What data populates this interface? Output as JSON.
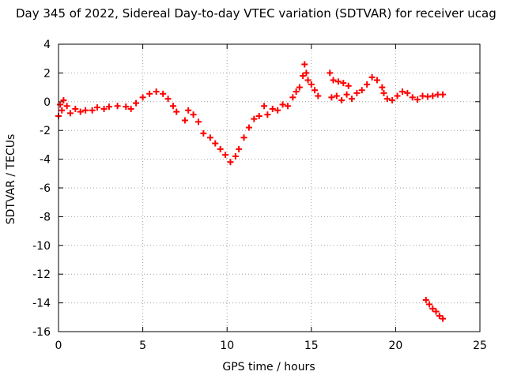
{
  "chart_data": {
    "type": "scatter",
    "title": "Day 345 of 2022, Sidereal Day-to-day VTEC variation (SDTVAR) for receiver ucag",
    "xlabel": "GPS time / hours",
    "ylabel": "SDTVAR / TECUs",
    "xlim": [
      0,
      25
    ],
    "ylim": [
      -16,
      4
    ],
    "xticks": [
      0,
      5,
      10,
      15,
      20,
      25
    ],
    "yticks": [
      4,
      2,
      0,
      -2,
      -4,
      -6,
      -8,
      -10,
      -12,
      -14,
      -16
    ],
    "grid": true,
    "marker_color": "#ff0000",
    "series": [
      {
        "name": "SDTVAR",
        "points": [
          [
            0.0,
            -1.0
          ],
          [
            0.1,
            -0.2
          ],
          [
            0.2,
            -0.6
          ],
          [
            0.3,
            0.1
          ],
          [
            0.5,
            -0.3
          ],
          [
            0.7,
            -0.8
          ],
          [
            1.0,
            -0.5
          ],
          [
            1.3,
            -0.7
          ],
          [
            1.6,
            -0.6
          ],
          [
            2.0,
            -0.6
          ],
          [
            2.3,
            -0.4
          ],
          [
            2.7,
            -0.5
          ],
          [
            3.0,
            -0.35
          ],
          [
            3.5,
            -0.3
          ],
          [
            4.0,
            -0.35
          ],
          [
            4.3,
            -0.5
          ],
          [
            4.6,
            -0.1
          ],
          [
            5.0,
            0.3
          ],
          [
            5.4,
            0.55
          ],
          [
            5.8,
            0.7
          ],
          [
            6.2,
            0.55
          ],
          [
            6.5,
            0.2
          ],
          [
            6.8,
            -0.3
          ],
          [
            7.0,
            -0.7
          ],
          [
            7.5,
            -1.3
          ],
          [
            7.7,
            -0.6
          ],
          [
            8.0,
            -0.9
          ],
          [
            8.3,
            -1.4
          ],
          [
            8.6,
            -2.2
          ],
          [
            9.0,
            -2.5
          ],
          [
            9.3,
            -2.9
          ],
          [
            9.6,
            -3.3
          ],
          [
            9.9,
            -3.7
          ],
          [
            10.2,
            -4.2
          ],
          [
            10.5,
            -3.8
          ],
          [
            10.7,
            -3.3
          ],
          [
            11.0,
            -2.5
          ],
          [
            11.3,
            -1.8
          ],
          [
            11.6,
            -1.2
          ],
          [
            11.9,
            -1.0
          ],
          [
            12.2,
            -0.3
          ],
          [
            12.4,
            -0.9
          ],
          [
            12.7,
            -0.5
          ],
          [
            13.0,
            -0.6
          ],
          [
            13.3,
            -0.2
          ],
          [
            13.6,
            -0.3
          ],
          [
            13.9,
            0.3
          ],
          [
            14.1,
            0.7
          ],
          [
            14.3,
            1.0
          ],
          [
            14.5,
            1.8
          ],
          [
            14.6,
            2.6
          ],
          [
            14.7,
            2.0
          ],
          [
            14.8,
            1.5
          ],
          [
            15.0,
            1.2
          ],
          [
            15.2,
            0.8
          ],
          [
            15.4,
            0.4
          ],
          [
            16.1,
            2.0
          ],
          [
            16.3,
            1.5
          ],
          [
            16.6,
            1.4
          ],
          [
            16.9,
            1.3
          ],
          [
            17.2,
            1.1
          ],
          [
            16.2,
            0.3
          ],
          [
            16.5,
            0.4
          ],
          [
            16.8,
            0.1
          ],
          [
            17.1,
            0.5
          ],
          [
            17.4,
            0.2
          ],
          [
            17.7,
            0.6
          ],
          [
            18.0,
            0.8
          ],
          [
            18.3,
            1.2
          ],
          [
            18.6,
            1.7
          ],
          [
            18.9,
            1.5
          ],
          [
            19.2,
            1.0
          ],
          [
            19.3,
            0.6
          ],
          [
            19.5,
            0.2
          ],
          [
            19.8,
            0.1
          ],
          [
            20.1,
            0.4
          ],
          [
            20.4,
            0.7
          ],
          [
            20.7,
            0.6
          ],
          [
            21.0,
            0.3
          ],
          [
            21.3,
            0.15
          ],
          [
            21.6,
            0.4
          ],
          [
            21.9,
            0.35
          ],
          [
            22.2,
            0.4
          ],
          [
            22.5,
            0.5
          ],
          [
            22.8,
            0.5
          ],
          [
            21.8,
            -13.8
          ],
          [
            22.0,
            -14.1
          ],
          [
            22.2,
            -14.4
          ],
          [
            22.4,
            -14.6
          ],
          [
            22.6,
            -14.9
          ],
          [
            22.8,
            -15.1
          ]
        ]
      }
    ]
  }
}
